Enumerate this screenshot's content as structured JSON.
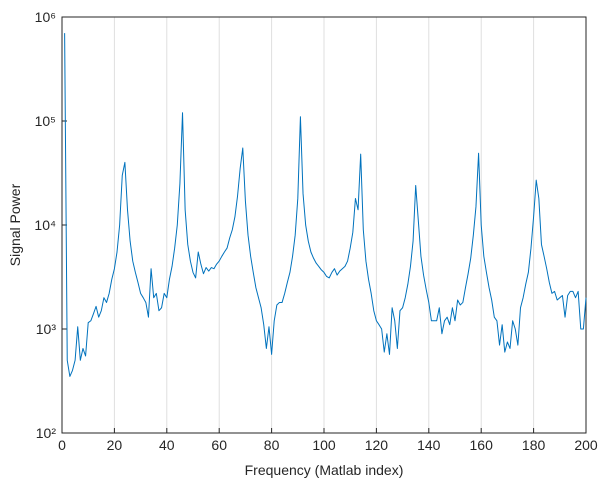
{
  "chart_data": {
    "type": "line",
    "log_y": true,
    "grid": "x",
    "color": "#0072bd",
    "xlabel": "Frequency (Matlab index)",
    "ylabel": "Signal Power",
    "xlim": [
      0,
      200
    ],
    "xticks": [
      0,
      20,
      40,
      60,
      80,
      100,
      120,
      140,
      160,
      180,
      200
    ],
    "ylim": [
      100,
      1000000
    ],
    "yticks": [
      {
        "value": 100,
        "label": "10²"
      },
      {
        "value": 1000,
        "label": "10³"
      },
      {
        "value": 10000,
        "label": "10⁴"
      },
      {
        "value": 100000,
        "label": "10⁵"
      },
      {
        "value": 1000000,
        "label": "10⁶"
      }
    ],
    "x": [
      1,
      2,
      3,
      4,
      5,
      6,
      7,
      8,
      9,
      10,
      11,
      12,
      13,
      14,
      15,
      16,
      17,
      18,
      19,
      20,
      21,
      22,
      23,
      24,
      25,
      26,
      27,
      28,
      29,
      30,
      31,
      32,
      33,
      34,
      35,
      36,
      37,
      38,
      39,
      40,
      41,
      42,
      43,
      44,
      45,
      46,
      47,
      48,
      49,
      50,
      51,
      52,
      53,
      54,
      55,
      56,
      57,
      58,
      59,
      60,
      61,
      62,
      63,
      64,
      65,
      66,
      67,
      68,
      69,
      70,
      71,
      72,
      73,
      74,
      75,
      76,
      77,
      78,
      79,
      80,
      81,
      82,
      83,
      84,
      85,
      86,
      87,
      88,
      89,
      90,
      91,
      92,
      93,
      94,
      95,
      96,
      97,
      98,
      99,
      100,
      101,
      102,
      103,
      104,
      105,
      106,
      107,
      108,
      109,
      110,
      111,
      112,
      113,
      114,
      115,
      116,
      117,
      118,
      119,
      120,
      121,
      122,
      123,
      124,
      125,
      126,
      127,
      128,
      129,
      130,
      131,
      132,
      133,
      134,
      135,
      136,
      137,
      138,
      139,
      140,
      141,
      142,
      143,
      144,
      145,
      146,
      147,
      148,
      149,
      150,
      151,
      152,
      153,
      154,
      155,
      156,
      157,
      158,
      159,
      160,
      161,
      162,
      163,
      164,
      165,
      166,
      167,
      168,
      169,
      170,
      171,
      172,
      173,
      174,
      175,
      176,
      177,
      178,
      179,
      180,
      181,
      182,
      183,
      184,
      185,
      186,
      187,
      188,
      189,
      190,
      191,
      192,
      193,
      194,
      195,
      196,
      197,
      198,
      199,
      200
    ],
    "values": [
      700000,
      500,
      350,
      400,
      500,
      1050,
      500,
      650,
      550,
      1150,
      1200,
      1400,
      1650,
      1300,
      1500,
      2000,
      1800,
      2200,
      3000,
      3800,
      5500,
      10000,
      30000,
      40000,
      14000,
      7000,
      4500,
      3500,
      2800,
      2200,
      2000,
      1800,
      1300,
      3800,
      2000,
      2200,
      1500,
      1600,
      2200,
      2000,
      3000,
      4000,
      6000,
      10000,
      25000,
      120000,
      14000,
      6500,
      4500,
      3500,
      3100,
      5500,
      4200,
      3400,
      3900,
      3600,
      3900,
      3800,
      4200,
      4500,
      5000,
      5500,
      6000,
      7500,
      9000,
      12000,
      19000,
      35000,
      55000,
      17000,
      8000,
      5000,
      3500,
      2500,
      2000,
      1600,
      1100,
      650,
      1050,
      570,
      1200,
      1700,
      1800,
      1800,
      2200,
      2800,
      3500,
      5000,
      8000,
      18000,
      110000,
      20000,
      10000,
      7000,
      5500,
      4800,
      4300,
      4000,
      3700,
      3500,
      3200,
      3100,
      3500,
      3800,
      3300,
      3600,
      3800,
      4000,
      4500,
      6000,
      8500,
      18000,
      14000,
      48000,
      9000,
      4500,
      3000,
      2200,
      1500,
      1200,
      1100,
      1000,
      600,
      900,
      570,
      1600,
      1200,
      650,
      1500,
      1600,
      2000,
      2700,
      4000,
      7000,
      24000,
      11000,
      5000,
      3300,
      2400,
      1800,
      1200,
      1200,
      1200,
      1600,
      900,
      1200,
      1300,
      1100,
      1600,
      1200,
      1900,
      1700,
      1800,
      2500,
      3400,
      4800,
      8000,
      15000,
      49000,
      10000,
      5000,
      3500,
      2500,
      1900,
      1300,
      1200,
      700,
      1100,
      600,
      750,
      650,
      1200,
      1000,
      700,
      1600,
      2000,
      2700,
      3500,
      6000,
      12000,
      27000,
      18000,
      6500,
      5000,
      3800,
      2800,
      2200,
      2300,
      1900,
      2000,
      2100,
      1300,
      2100,
      2300,
      2300,
      2000,
      2300,
      1000,
      1000,
      2000
    ]
  }
}
